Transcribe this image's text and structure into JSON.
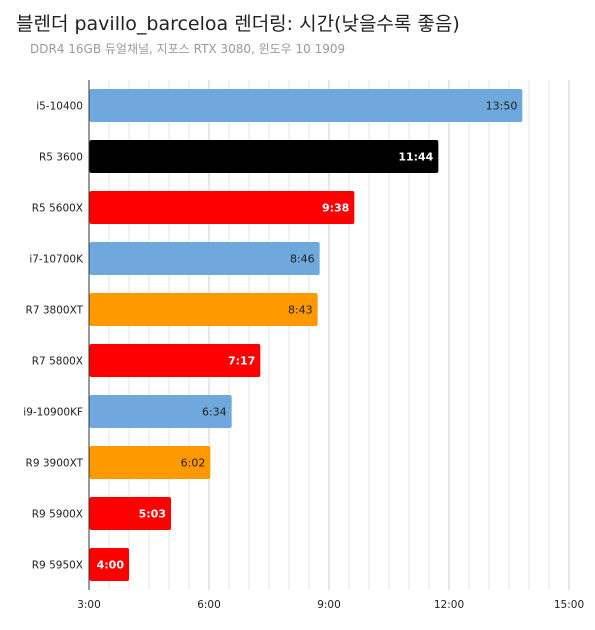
{
  "title": "블렌더 pavillo_barceloa 렌더링: 시간(낮을수록 좋음)",
  "subtitle": "DDR4 16GB 듀얼채널, 지포스 RTX 3080, 윈도우 10 1909",
  "chart_data": {
    "type": "bar",
    "orientation": "horizontal",
    "title": "블렌더 pavillo_barceloa 렌더링: 시간(낮을수록 좋음)",
    "subtitle": "DDR4 16GB 듀얼채널, 지포스 RTX 3080, 윈도우 10 1909",
    "categories": [
      "i5-10400",
      "R5 3600",
      "R5 5600X",
      "i7-10700K",
      "R7 3800XT",
      "R7 5800X",
      "i9-10900KF",
      "R9 3900XT",
      "R9 5900X",
      "R9 5950X"
    ],
    "values_seconds": [
      830,
      704,
      578,
      526,
      523,
      437,
      394,
      362,
      303,
      240
    ],
    "value_labels": [
      "13:50",
      "11:44",
      "9:38",
      "8:46",
      "8:43",
      "7:17",
      "6:34",
      "6:02",
      "5:03",
      "4:00"
    ],
    "bar_colors": [
      "#6fa8dc",
      "#000000",
      "#ff0000",
      "#6fa8dc",
      "#ff9900",
      "#ff0000",
      "#6fa8dc",
      "#ff9900",
      "#ff0000",
      "#ff0000"
    ],
    "label_colors": [
      "#222222",
      "#ffffff",
      "#ffffff",
      "#222222",
      "#222222",
      "#ffffff",
      "#222222",
      "#222222",
      "#ffffff",
      "#ffffff"
    ],
    "label_bold": [
      false,
      true,
      true,
      false,
      false,
      true,
      false,
      false,
      true,
      true
    ],
    "xlim_seconds": [
      180,
      900
    ],
    "xticks_seconds": [
      180,
      360,
      540,
      720,
      900
    ],
    "xtick_labels": [
      "3:00",
      "6:00",
      "9:00",
      "12:00",
      "15:00"
    ],
    "minor_grid_step_seconds": 30,
    "grid": true,
    "legend": "none"
  }
}
